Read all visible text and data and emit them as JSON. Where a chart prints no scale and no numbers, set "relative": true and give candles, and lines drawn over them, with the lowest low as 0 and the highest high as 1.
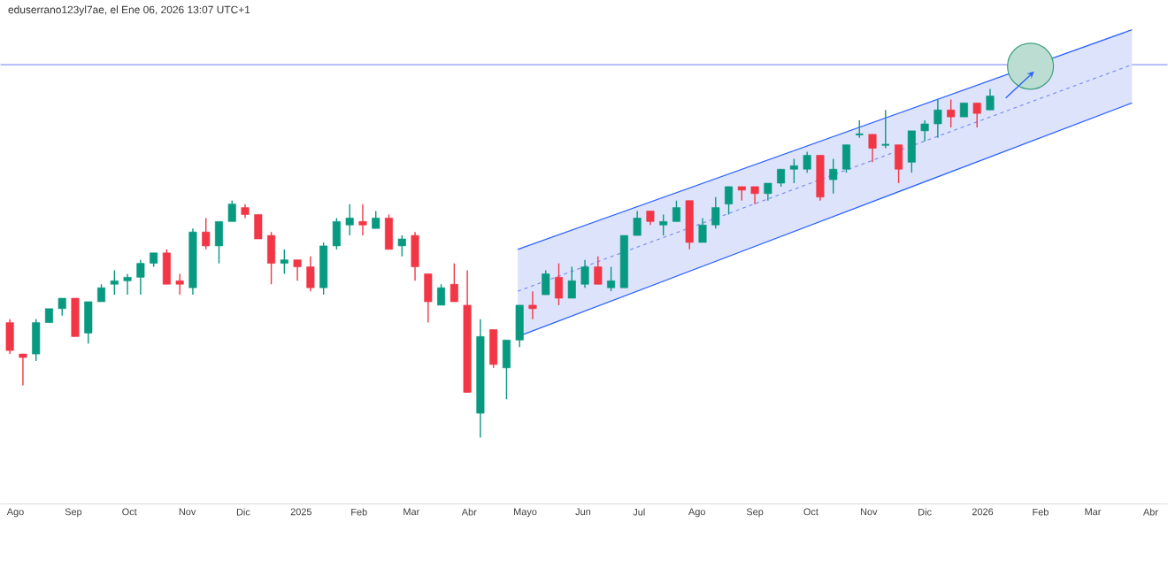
{
  "chart_data": {
    "type": "candlestick",
    "title": "eduserrano123yl7ae, el Ene 06, 2026 13:07 UTC+1",
    "relative": true,
    "xlim": [
      "2024-07-24",
      "2026-04-10"
    ],
    "xticks": [
      {
        "value": "2024-08-01",
        "label": "Ago"
      },
      {
        "value": "2024-09-01",
        "label": "Sep"
      },
      {
        "value": "2024-10-01",
        "label": "Oct"
      },
      {
        "value": "2024-11-01",
        "label": "Nov"
      },
      {
        "value": "2024-12-01",
        "label": "Dic"
      },
      {
        "value": "2025-01-01",
        "label": "2025"
      },
      {
        "value": "2025-02-01",
        "label": "Feb"
      },
      {
        "value": "2025-03-01",
        "label": "Mar"
      },
      {
        "value": "2025-04-01",
        "label": "Abr"
      },
      {
        "value": "2025-05-01",
        "label": "Mayo"
      },
      {
        "value": "2025-06-01",
        "label": "Jun"
      },
      {
        "value": "2025-07-01",
        "label": "Jul"
      },
      {
        "value": "2025-08-01",
        "label": "Ago"
      },
      {
        "value": "2025-09-01",
        "label": "Sep"
      },
      {
        "value": "2025-10-01",
        "label": "Oct"
      },
      {
        "value": "2025-11-01",
        "label": "Nov"
      },
      {
        "value": "2025-12-01",
        "label": "Dic"
      },
      {
        "value": "2026-01-01",
        "label": "2026"
      },
      {
        "value": "2026-02-01",
        "label": "Feb"
      },
      {
        "value": "2026-03-01",
        "label": "Mar"
      },
      {
        "value": "2026-04-01",
        "label": "Abr"
      }
    ],
    "x": [
      "2024-07-29",
      "2024-08-05",
      "2024-08-12",
      "2024-08-19",
      "2024-08-26",
      "2024-09-02",
      "2024-09-09",
      "2024-09-16",
      "2024-09-23",
      "2024-09-30",
      "2024-10-07",
      "2024-10-14",
      "2024-10-21",
      "2024-10-28",
      "2024-11-04",
      "2024-11-11",
      "2024-11-18",
      "2024-11-25",
      "2024-12-02",
      "2024-12-09",
      "2024-12-16",
      "2024-12-23",
      "2024-12-30",
      "2025-01-06",
      "2025-01-13",
      "2025-01-20",
      "2025-01-27",
      "2025-02-03",
      "2025-02-10",
      "2025-02-17",
      "2025-02-24",
      "2025-03-03",
      "2025-03-10",
      "2025-03-17",
      "2025-03-24",
      "2025-03-31",
      "2025-04-07",
      "2025-04-14",
      "2025-04-21",
      "2025-04-28",
      "2025-05-05",
      "2025-05-12",
      "2025-05-19",
      "2025-05-26",
      "2025-06-02",
      "2025-06-09",
      "2025-06-16",
      "2025-06-23",
      "2025-06-30",
      "2025-07-07",
      "2025-07-14",
      "2025-07-21",
      "2025-07-28",
      "2025-08-04",
      "2025-08-11",
      "2025-08-18",
      "2025-08-25",
      "2025-09-01",
      "2025-09-08",
      "2025-09-15",
      "2025-09-22",
      "2025-09-29",
      "2025-10-06",
      "2025-10-13",
      "2025-10-20",
      "2025-10-27",
      "2025-11-03",
      "2025-11-10",
      "2025-11-17",
      "2025-11-24",
      "2025-12-01",
      "2025-12-08",
      "2025-12-15",
      "2025-12-22",
      "2025-12-29",
      "2026-01-05"
    ],
    "ohlc": [
      [
        0.33,
        0.34,
        0.24,
        0.25
      ],
      [
        0.24,
        0.24,
        0.15,
        0.23
      ],
      [
        0.24,
        0.34,
        0.22,
        0.33
      ],
      [
        0.33,
        0.37,
        0.33,
        0.37
      ],
      [
        0.37,
        0.4,
        0.35,
        0.4
      ],
      [
        0.4,
        0.4,
        0.29,
        0.29
      ],
      [
        0.3,
        0.39,
        0.27,
        0.39
      ],
      [
        0.39,
        0.44,
        0.39,
        0.43
      ],
      [
        0.44,
        0.48,
        0.41,
        0.45
      ],
      [
        0.45,
        0.47,
        0.41,
        0.46
      ],
      [
        0.46,
        0.51,
        0.41,
        0.5
      ],
      [
        0.5,
        0.53,
        0.49,
        0.53
      ],
      [
        0.53,
        0.54,
        0.44,
        0.44
      ],
      [
        0.45,
        0.47,
        0.41,
        0.44
      ],
      [
        0.43,
        0.6,
        0.41,
        0.59
      ],
      [
        0.59,
        0.63,
        0.54,
        0.55
      ],
      [
        0.55,
        0.62,
        0.5,
        0.62
      ],
      [
        0.62,
        0.68,
        0.62,
        0.67
      ],
      [
        0.66,
        0.67,
        0.63,
        0.64
      ],
      [
        0.64,
        0.64,
        0.57,
        0.57
      ],
      [
        0.58,
        0.59,
        0.44,
        0.5
      ],
      [
        0.5,
        0.54,
        0.47,
        0.51
      ],
      [
        0.51,
        0.51,
        0.45,
        0.49
      ],
      [
        0.49,
        0.52,
        0.42,
        0.43
      ],
      [
        0.43,
        0.56,
        0.41,
        0.55
      ],
      [
        0.55,
        0.63,
        0.54,
        0.62
      ],
      [
        0.61,
        0.67,
        0.58,
        0.63
      ],
      [
        0.62,
        0.67,
        0.58,
        0.61
      ],
      [
        0.6,
        0.65,
        0.6,
        0.63
      ],
      [
        0.63,
        0.64,
        0.54,
        0.54
      ],
      [
        0.55,
        0.58,
        0.52,
        0.57
      ],
      [
        0.58,
        0.59,
        0.45,
        0.49
      ],
      [
        0.47,
        0.47,
        0.33,
        0.39
      ],
      [
        0.38,
        0.44,
        0.38,
        0.43
      ],
      [
        0.44,
        0.5,
        0.39,
        0.39
      ],
      [
        0.38,
        0.48,
        0.13,
        0.13
      ],
      [
        0.07,
        0.34,
        0,
        0.29
      ],
      [
        0.31,
        0.31,
        0.2,
        0.21
      ],
      [
        0.2,
        0.28,
        0.11,
        0.28
      ],
      [
        0.28,
        0.38,
        0.26,
        0.38
      ],
      [
        0.38,
        0.42,
        0.34,
        0.37
      ],
      [
        0.41,
        0.48,
        0.41,
        0.47
      ],
      [
        0.46,
        0.5,
        0.38,
        0.4
      ],
      [
        0.4,
        0.49,
        0.4,
        0.45
      ],
      [
        0.44,
        0.51,
        0.43,
        0.49
      ],
      [
        0.49,
        0.52,
        0.44,
        0.44
      ],
      [
        0.43,
        0.49,
        0.42,
        0.45
      ],
      [
        0.43,
        0.58,
        0.43,
        0.58
      ],
      [
        0.58,
        0.65,
        0.58,
        0.63
      ],
      [
        0.65,
        0.65,
        0.61,
        0.62
      ],
      [
        0.61,
        0.64,
        0.58,
        0.62
      ],
      [
        0.62,
        0.68,
        0.62,
        0.66
      ],
      [
        0.68,
        0.68,
        0.54,
        0.56
      ],
      [
        0.56,
        0.63,
        0.56,
        0.61
      ],
      [
        0.61,
        0.69,
        0.6,
        0.66
      ],
      [
        0.67,
        0.72,
        0.64,
        0.72
      ],
      [
        0.72,
        0.72,
        0.68,
        0.71
      ],
      [
        0.72,
        0.72,
        0.67,
        0.7
      ],
      [
        0.7,
        0.73,
        0.68,
        0.73
      ],
      [
        0.73,
        0.77,
        0.72,
        0.77
      ],
      [
        0.77,
        0.8,
        0.73,
        0.78
      ],
      [
        0.77,
        0.82,
        0.76,
        0.81
      ],
      [
        0.81,
        0.81,
        0.68,
        0.69
      ],
      [
        0.74,
        0.8,
        0.7,
        0.77
      ],
      [
        0.77,
        0.84,
        0.76,
        0.84
      ],
      [
        0.87,
        0.91,
        0.86,
        0.87
      ],
      [
        0.87,
        0.87,
        0.79,
        0.83
      ],
      [
        0.84,
        0.94,
        0.83,
        0.84
      ],
      [
        0.84,
        0.84,
        0.73,
        0.77
      ],
      [
        0.79,
        0.88,
        0.76,
        0.88
      ],
      [
        0.88,
        0.91,
        0.85,
        0.9
      ],
      [
        0.9,
        0.97,
        0.86,
        0.94
      ],
      [
        0.94,
        0.97,
        0.89,
        0.92
      ],
      [
        0.92,
        0.96,
        0.92,
        0.96
      ],
      [
        0.96,
        0.96,
        0.89,
        0.93
      ],
      [
        0.94,
        1,
        0.94,
        0.98
      ]
    ],
    "colors": [
      "#f23645",
      "#f23645",
      "#089981",
      "#089981",
      "#089981",
      "#f23645",
      "#089981",
      "#089981",
      "#089981",
      "#089981",
      "#089981",
      "#089981",
      "#f23645",
      "#f23645",
      "#089981",
      "#f23645",
      "#089981",
      "#089981",
      "#f23645",
      "#f23645",
      "#f23645",
      "#089981",
      "#f23645",
      "#f23645",
      "#089981",
      "#089981",
      "#089981",
      "#f23645",
      "#089981",
      "#f23645",
      "#089981",
      "#f23645",
      "#f23645",
      "#089981",
      "#f23645",
      "#f23645",
      "#089981",
      "#f23645",
      "#089981",
      "#089981",
      "#f23645",
      "#089981",
      "#f23645",
      "#089981",
      "#089981",
      "#f23645",
      "#089981",
      "#089981",
      "#089981",
      "#f23645",
      "#089981",
      "#089981",
      "#f23645",
      "#089981",
      "#089981",
      "#089981",
      "#f23645",
      "#f23645",
      "#089981",
      "#089981",
      "#089981",
      "#089981",
      "#f23645",
      "#089981",
      "#089981",
      "#089981",
      "#f23645",
      "#089981",
      "#f23645",
      "#089981",
      "#089981",
      "#089981",
      "#f23645",
      "#089981",
      "#f23645",
      "#089981"
    ],
    "series": [
      {
        "type": "line",
        "x": [
          "2025-04-27",
          "2026-03-22"
        ],
        "values": [
          0.42,
          1.07
        ],
        "lower": [
          0.29,
          0.96
        ],
        "upper": [
          0.54,
          1.17
        ],
        "color": "#7b8ff5",
        "line_style": "dashed"
      },
      {
        "type": "line",
        "x": [
          "2025-04-27",
          "2026-03-22"
        ],
        "values": [
          0.54,
          1.17
        ],
        "color": "#2962ff",
        "line_style": "solid"
      },
      {
        "type": "line",
        "x": [
          "2025-04-27",
          "2026-03-22"
        ],
        "values": [
          0.29,
          0.96
        ],
        "color": "#2962ff",
        "line_style": "solid"
      }
    ],
    "ref_lines": [
      {
        "axis": "y",
        "value": 1.07,
        "color": "#8a96f5"
      }
    ]
  }
}
